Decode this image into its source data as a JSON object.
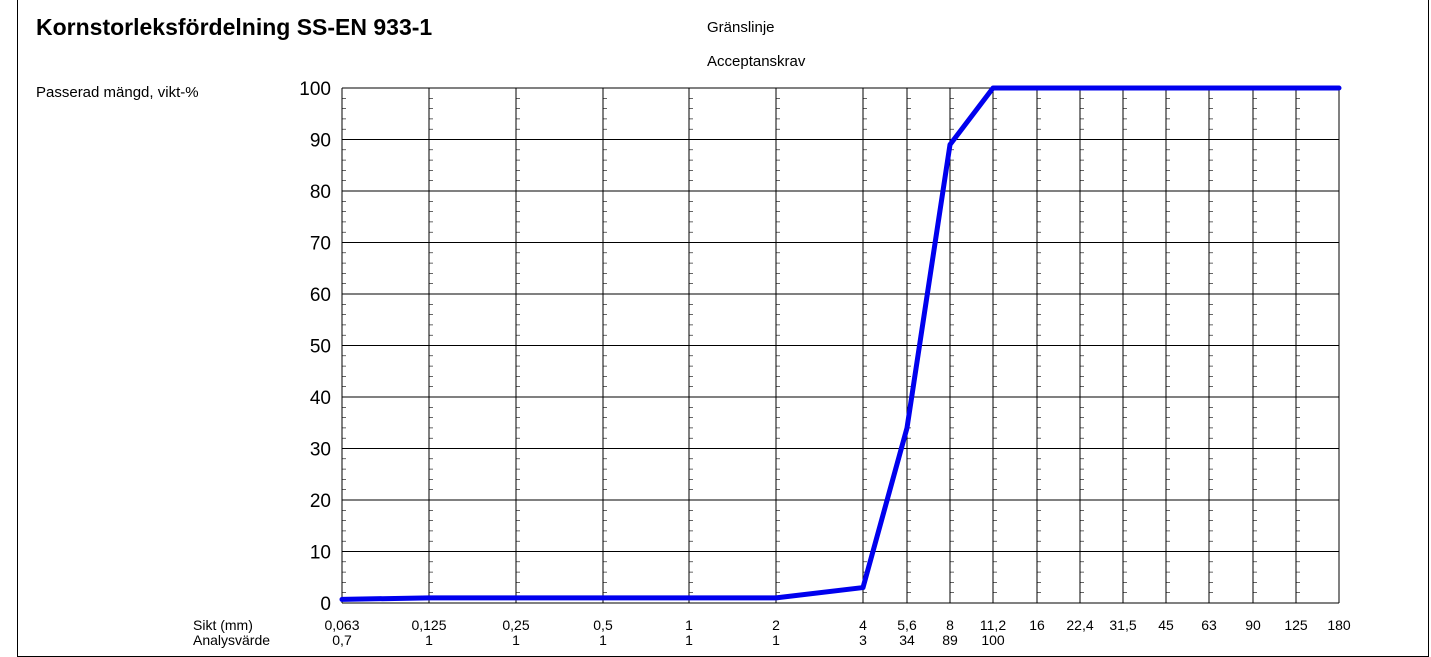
{
  "title": "Kornstorleksfördelning SS-EN 933-1",
  "legend": [
    "Gränslinje",
    "Acceptanskrav"
  ],
  "chart_data": {
    "type": "line",
    "title": "Kornstorleksfördelning SS-EN 933-1",
    "ylabel": "Passerad mängd, vikt-%",
    "xlabel": "Sikt (mm)",
    "row_label": "Analysvärde",
    "ylim": [
      0,
      100
    ],
    "yticks": [
      0,
      10,
      20,
      30,
      40,
      50,
      60,
      70,
      80,
      90,
      100
    ],
    "grid": true,
    "categories": [
      "0,063",
      "0,125",
      "0,25",
      "0,5",
      "1",
      "2",
      "4",
      "5,6",
      "8",
      "11,2",
      "16",
      "22,4",
      "31,5",
      "45",
      "63",
      "90",
      "125",
      "180"
    ],
    "analysis_values": [
      "0,7",
      "1",
      "1",
      "1",
      "1",
      "1",
      "3",
      "34",
      "89",
      "100",
      "",
      "",
      "",
      "",
      "",
      "",
      "",
      ""
    ],
    "series": [
      {
        "color": "#0000ee",
        "values": [
          0.7,
          1,
          1,
          1,
          1,
          1,
          3,
          34,
          89,
          100,
          100,
          100,
          100,
          100,
          100,
          100,
          100,
          100
        ]
      }
    ]
  }
}
